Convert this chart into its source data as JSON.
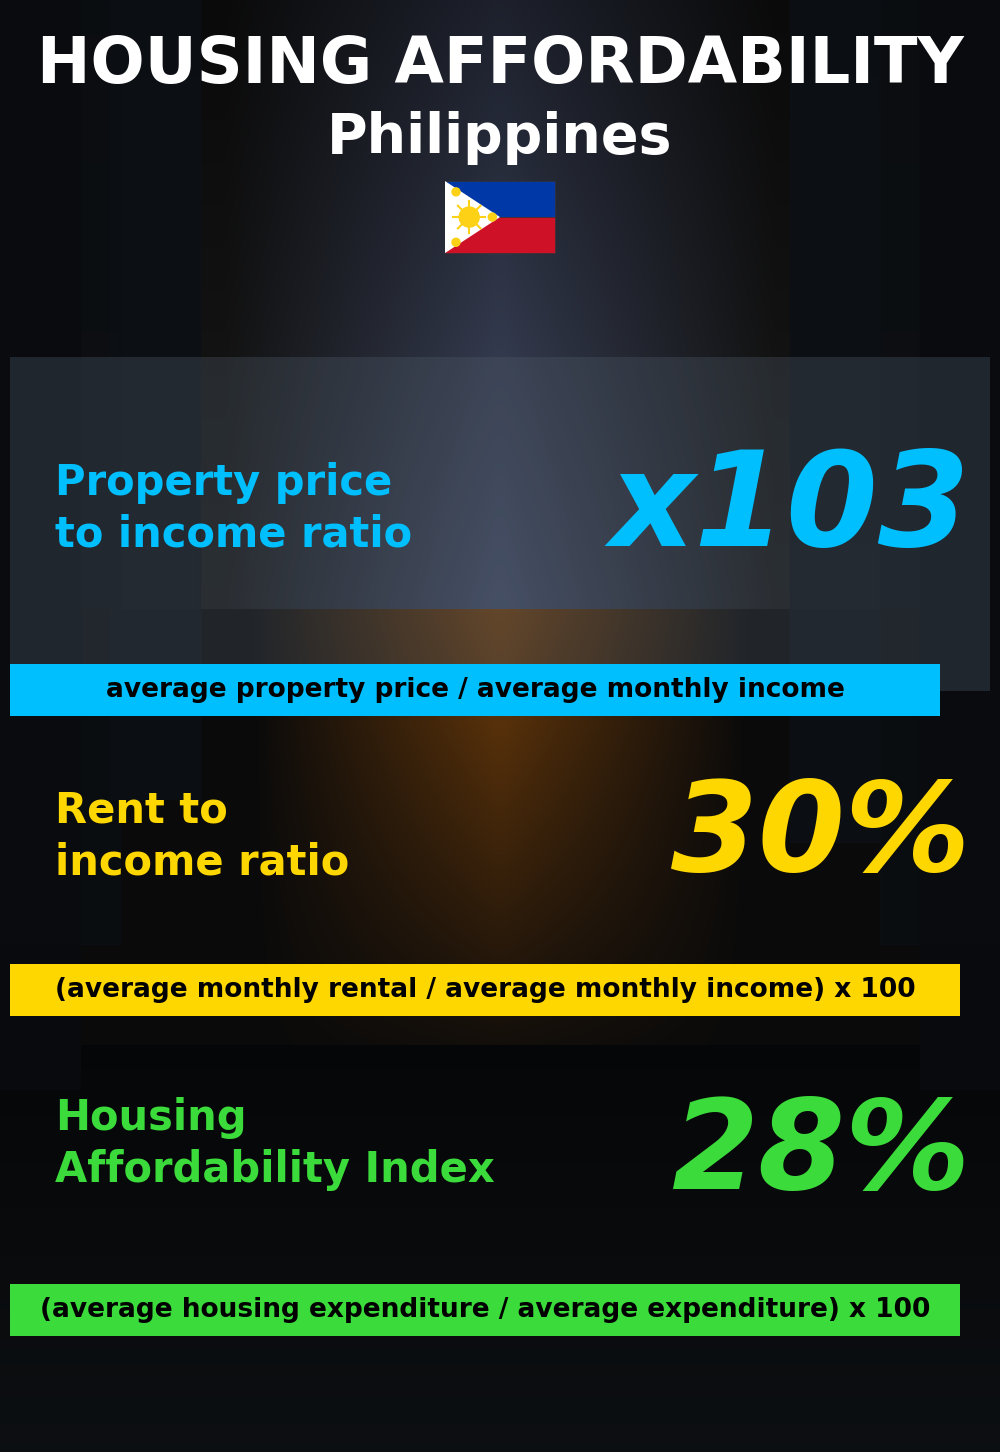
{
  "title_line1": "HOUSING AFFORDABILITY",
  "title_line2": "Philippines",
  "bg_color": "#060e1a",
  "section1_label": "Property price\nto income ratio",
  "section1_value": "x103",
  "section1_label_color": "#00bfff",
  "section1_value_color": "#00bfff",
  "section1_banner_text": "average property price / average monthly income",
  "section1_banner_bg": "#00bfff",
  "section1_banner_text_color": "#000000",
  "section2_label": "Rent to\nincome ratio",
  "section2_value": "30%",
  "section2_label_color": "#ffd700",
  "section2_value_color": "#ffd700",
  "section2_banner_text": "(average monthly rental / average monthly income) x 100",
  "section2_banner_bg": "#ffd700",
  "section2_banner_text_color": "#000000",
  "section3_label": "Housing\nAffordability Index",
  "section3_value": "28%",
  "section3_label_color": "#3adb3a",
  "section3_value_color": "#3adb3a",
  "section3_banner_text": "(average housing expenditure / average expenditure) x 100",
  "section3_banner_bg": "#3adb3a",
  "section3_banner_text_color": "#000000",
  "title_fontsize": 46,
  "title2_fontsize": 40,
  "label_fontsize": 30,
  "value1_fontsize": 95,
  "value2_fontsize": 90,
  "value3_fontsize": 90,
  "banner_fontsize": 19
}
